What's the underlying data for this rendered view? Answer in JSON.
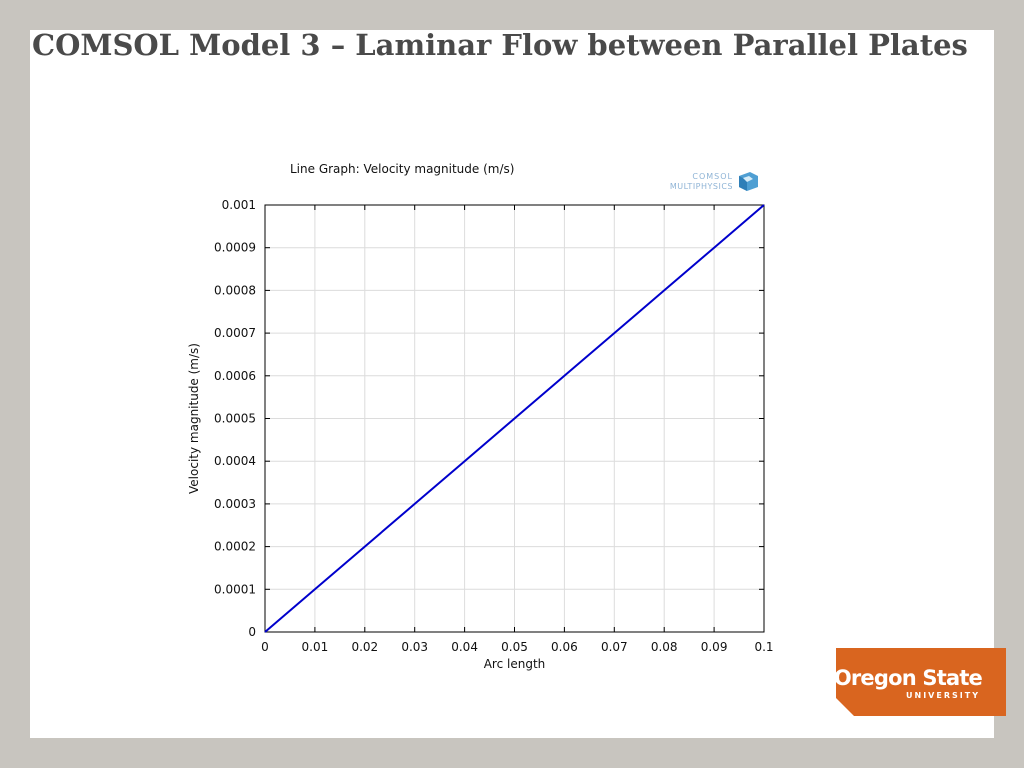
{
  "slide": {
    "title": "COMSOL Model 3 – Laminar Flow between Parallel Plates"
  },
  "logo": {
    "name": "Oregon State",
    "sub": "UNIVERSITY",
    "color": "#d9651f"
  },
  "watermark": {
    "line1": "COMSOL",
    "line2": "MULTIPHYSICS",
    "icon": "comsol-cube-icon"
  },
  "chart_data": {
    "type": "line",
    "title": "Line Graph: Velocity magnitude (m/s)",
    "xlabel": "Arc length",
    "ylabel": "Velocity magnitude (m/s)",
    "xlim": [
      0,
      0.1
    ],
    "ylim": [
      0,
      0.001
    ],
    "xticks": [
      "0",
      "0.01",
      "0.02",
      "0.03",
      "0.04",
      "0.05",
      "0.06",
      "0.07",
      "0.08",
      "0.09",
      "0.1"
    ],
    "yticks": [
      "0",
      "0.0001",
      "0.0002",
      "0.0003",
      "0.0004",
      "0.0005",
      "0.0006",
      "0.0007",
      "0.0008",
      "0.0009",
      "0.001"
    ],
    "grid": true,
    "series": [
      {
        "color": "#0000cc",
        "x": [
          0,
          0.01,
          0.02,
          0.03,
          0.04,
          0.05,
          0.06,
          0.07,
          0.08,
          0.09,
          0.1
        ],
        "y": [
          0,
          0.0001,
          0.0002,
          0.0003,
          0.0004,
          0.0005,
          0.0006,
          0.0007,
          0.0008,
          0.0009,
          0.001
        ]
      }
    ]
  }
}
